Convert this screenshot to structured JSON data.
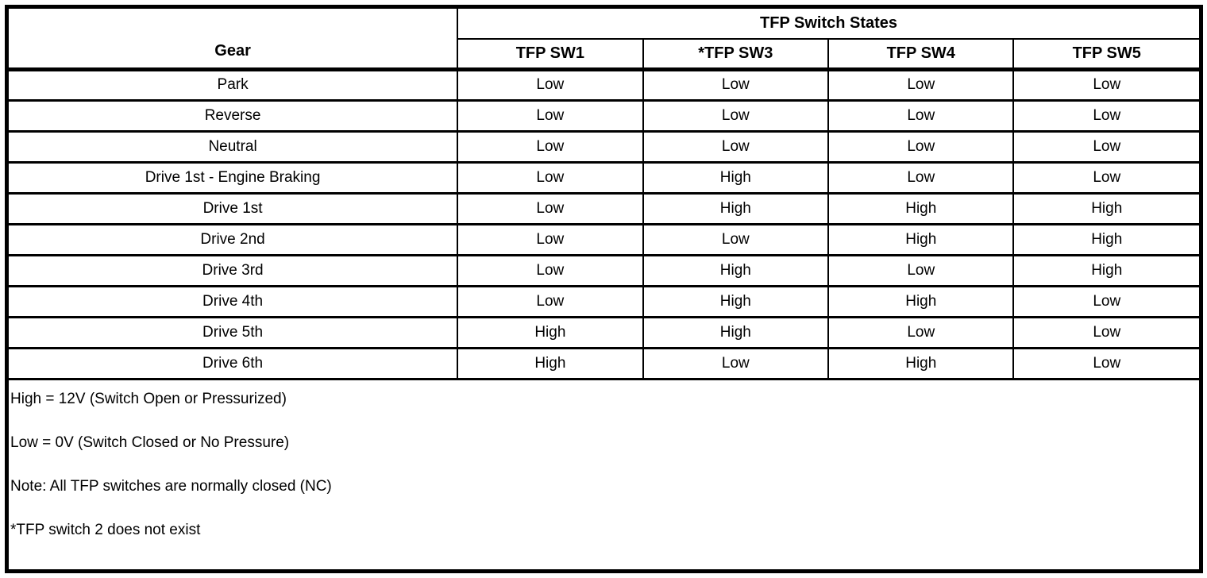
{
  "table": {
    "group_header": "TFP Switch States",
    "gear_header": "Gear",
    "switch_headers": [
      "TFP SW1",
      "*TFP SW3",
      "TFP SW4",
      "TFP SW5"
    ],
    "rows": [
      {
        "gear": "Park",
        "values": [
          "Low",
          "Low",
          "Low",
          "Low"
        ]
      },
      {
        "gear": "Reverse",
        "values": [
          "Low",
          "Low",
          "Low",
          "Low"
        ]
      },
      {
        "gear": "Neutral",
        "values": [
          "Low",
          "Low",
          "Low",
          "Low"
        ]
      },
      {
        "gear": "Drive 1st - Engine Braking",
        "values": [
          "Low",
          "High",
          "Low",
          "Low"
        ]
      },
      {
        "gear": "Drive 1st",
        "values": [
          "Low",
          "High",
          "High",
          "High"
        ]
      },
      {
        "gear": "Drive 2nd",
        "values": [
          "Low",
          "Low",
          "High",
          "High"
        ]
      },
      {
        "gear": "Drive 3rd",
        "values": [
          "Low",
          "High",
          "Low",
          "High"
        ]
      },
      {
        "gear": "Drive 4th",
        "values": [
          "Low",
          "High",
          "High",
          "Low"
        ]
      },
      {
        "gear": "Drive 5th",
        "values": [
          "High",
          "High",
          "Low",
          "Low"
        ]
      },
      {
        "gear": "Drive 6th",
        "values": [
          "High",
          "Low",
          "High",
          "Low"
        ]
      }
    ]
  },
  "notes": [
    "High = 12V (Switch Open or Pressurized)",
    "Low = 0V (Switch Closed or No Pressure)",
    "Note: All TFP switches are normally closed (NC)",
    "*TFP switch 2 does not exist"
  ],
  "colors": {
    "border": "#000000",
    "background": "#ffffff",
    "text": "#000000"
  }
}
